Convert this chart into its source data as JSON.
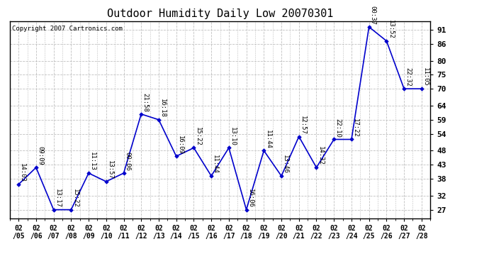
{
  "title": "Outdoor Humidity Daily Low 20070301",
  "copyright": "Copyright 2007 Cartronics.com",
  "dates": [
    "02/05",
    "02/06",
    "02/07",
    "02/08",
    "02/09",
    "02/10",
    "02/11",
    "02/12",
    "02/13",
    "02/14",
    "02/15",
    "02/16",
    "02/17",
    "02/18",
    "02/19",
    "02/20",
    "02/21",
    "02/22",
    "02/23",
    "02/24",
    "02/25",
    "02/26",
    "02/27",
    "02/28"
  ],
  "values": [
    36,
    42,
    27,
    27,
    40,
    37,
    40,
    61,
    59,
    46,
    49,
    39,
    49,
    27,
    48,
    39,
    53,
    42,
    52,
    52,
    92,
    87,
    70,
    70
  ],
  "time_labels": [
    "14:03",
    "09:09",
    "13:17",
    "15:22",
    "11:13",
    "13:57",
    "00:06",
    "21:58",
    "16:18",
    "16:09",
    "15:22",
    "11:44",
    "13:10",
    "16:06",
    "11:44",
    "13:46",
    "12:57",
    "14:32",
    "22:10",
    "17:22",
    "00:37",
    "13:52",
    "22:32",
    "11:05"
  ],
  "line_color": "#0000CC",
  "marker_color": "#0000CC",
  "bg_color": "#ffffff",
  "grid_color": "#c0c0c0",
  "yticks": [
    27,
    32,
    38,
    43,
    48,
    54,
    59,
    64,
    70,
    75,
    80,
    86,
    91
  ],
  "ylim": [
    24,
    94
  ],
  "title_fontsize": 11,
  "label_fontsize": 6.5,
  "copyright_fontsize": 6.5,
  "tick_fontsize": 8,
  "xtick_fontsize": 7
}
